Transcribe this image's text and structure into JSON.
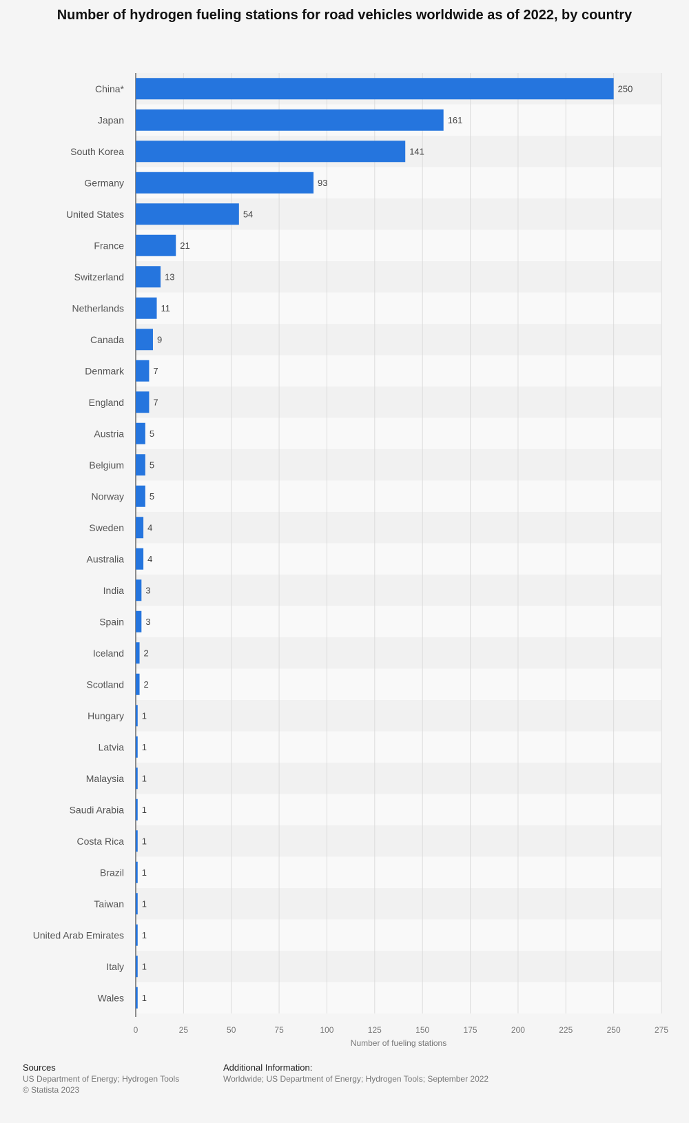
{
  "title": "Number of hydrogen fueling stations for road vehicles worldwide as of 2022, by country",
  "footer": {
    "sources_heading": "Sources",
    "sources_text": "US Department of Energy; Hydrogen Tools",
    "copyright": "© Statista 2023",
    "additional_heading": "Additional Information:",
    "additional_text": "Worldwide; US Department of Energy; Hydrogen Tools; September 2022"
  },
  "colors": {
    "bar": "#2575de",
    "band_alt": "#f1f1f1",
    "band_base": "#f9f9f9",
    "grid": "#dcdcdc"
  },
  "chart_data": {
    "type": "bar",
    "orientation": "horizontal",
    "categories": [
      "China*",
      "Japan",
      "South Korea",
      "Germany",
      "United States",
      "France",
      "Switzerland",
      "Netherlands",
      "Canada",
      "Denmark",
      "England",
      "Austria",
      "Belgium",
      "Norway",
      "Sweden",
      "Australia",
      "India",
      "Spain",
      "Iceland",
      "Scotland",
      "Hungary",
      "Latvia",
      "Malaysia",
      "Saudi Arabia",
      "Costa Rica",
      "Brazil",
      "Taiwan",
      "United Arab Emirates",
      "Italy",
      "Wales"
    ],
    "values": [
      250,
      161,
      141,
      93,
      54,
      21,
      13,
      11,
      9,
      7,
      7,
      5,
      5,
      5,
      4,
      4,
      3,
      3,
      2,
      2,
      1,
      1,
      1,
      1,
      1,
      1,
      1,
      1,
      1,
      1
    ],
    "title": "Number of hydrogen fueling stations for road vehicles worldwide as of 2022, by country",
    "xlabel": "Number of fueling stations",
    "ylabel": "",
    "xlim": [
      0,
      275
    ],
    "ticks": [
      0,
      25,
      50,
      75,
      100,
      125,
      150,
      175,
      200,
      225,
      250,
      275
    ],
    "tick_labels": [
      "0",
      "25",
      "50",
      "75",
      "100",
      "125",
      "150",
      "175",
      "200",
      "225",
      "250",
      "275"
    ],
    "grid": true,
    "legend": "none"
  }
}
